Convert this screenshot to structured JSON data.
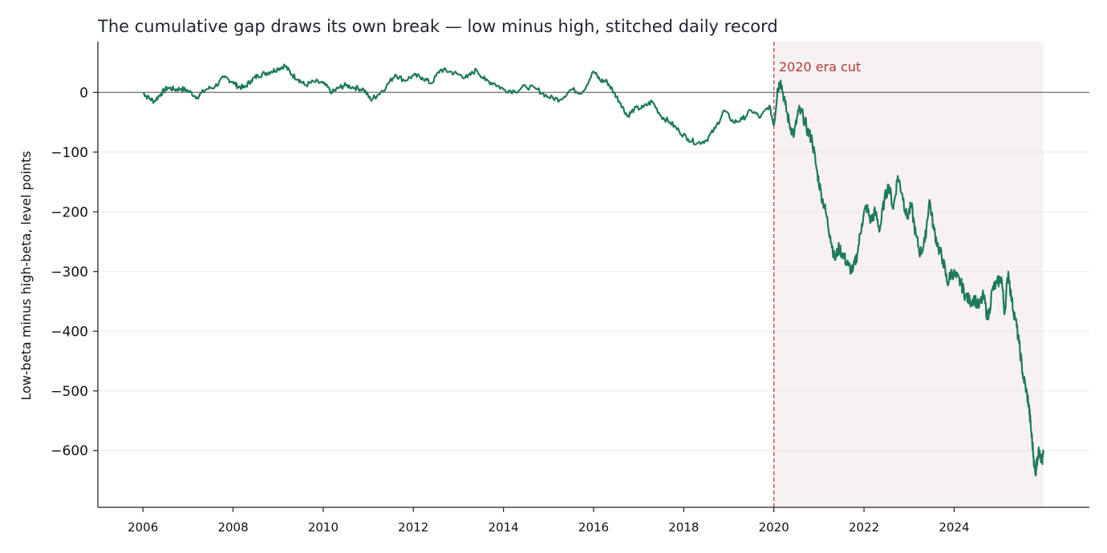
{
  "chart_data": {
    "type": "line",
    "title": "The cumulative gap draws its own break — low minus high, stitched daily record",
    "xlabel": "",
    "ylabel": "Low-beta minus high-beta, level points",
    "xlim": [
      2005.0,
      2027.0
    ],
    "ylim": [
      -695,
      85
    ],
    "x_ticks": [
      2006,
      2008,
      2010,
      2012,
      2014,
      2016,
      2018,
      2020,
      2022,
      2024
    ],
    "x_tick_labels": [
      "2006",
      "2008",
      "2010",
      "2012",
      "2014",
      "2016",
      "2018",
      "2020",
      "2022",
      "2024"
    ],
    "y_ticks": [
      0,
      -100,
      -200,
      -300,
      -400,
      -500,
      -600
    ],
    "y_tick_labels": [
      "0",
      "−100",
      "−200",
      "−300",
      "−400",
      "−500",
      "−600"
    ],
    "grid": "horizontal",
    "zero_line": true,
    "annotation": {
      "x": 2020.0,
      "label": "2020 era cut",
      "shade_to": 2025.98
    },
    "colors": {
      "line": "#1e7a5c",
      "cut": "#c0504d",
      "shade": "#f7f1f1",
      "annot_text": "#b03a3a",
      "zero": "#7a7a7a",
      "grid": "#e8e8e8",
      "axis": "#222222"
    },
    "series": [
      {
        "x": [
          2006.0,
          2006.1,
          2006.25,
          2006.4,
          2006.55,
          2006.7,
          2006.85,
          2007.0,
          2007.2,
          2007.4,
          2007.6,
          2007.8,
          2008.0,
          2008.1,
          2008.25,
          2008.4,
          2008.55,
          2008.7,
          2008.85,
          2009.0,
          2009.15,
          2009.3,
          2009.45,
          2009.6,
          2009.8,
          2010.0,
          2010.2,
          2010.35,
          2010.5,
          2010.7,
          2010.9,
          2011.05,
          2011.2,
          2011.4,
          2011.6,
          2011.8,
          2012.0,
          2012.2,
          2012.4,
          2012.6,
          2012.8,
          2013.0,
          2013.2,
          2013.4,
          2013.6,
          2013.8,
          2014.0,
          2014.25,
          2014.5,
          2014.75,
          2015.0,
          2015.25,
          2015.5,
          2015.75,
          2016.0,
          2016.15,
          2016.3,
          2016.45,
          2016.6,
          2016.75,
          2016.9,
          2017.1,
          2017.3,
          2017.5,
          2017.7,
          2017.9,
          2018.1,
          2018.3,
          2018.5,
          2018.7,
          2018.9,
          2019.1,
          2019.3,
          2019.5,
          2019.7,
          2019.9,
          2020.0,
          2020.08,
          2020.15,
          2020.25,
          2020.35,
          2020.45,
          2020.55,
          2020.65,
          2020.75,
          2020.85,
          2020.95,
          2021.05,
          2021.15,
          2021.25,
          2021.35,
          2021.45,
          2021.55,
          2021.65,
          2021.75,
          2021.85,
          2021.95,
          2022.05,
          2022.15,
          2022.25,
          2022.35,
          2022.45,
          2022.55,
          2022.65,
          2022.75,
          2022.85,
          2022.95,
          2023.05,
          2023.15,
          2023.25,
          2023.35,
          2023.45,
          2023.55,
          2023.65,
          2023.75,
          2023.85,
          2023.95,
          2024.05,
          2024.15,
          2024.25,
          2024.35,
          2024.45,
          2024.55,
          2024.65,
          2024.75,
          2024.85,
          2024.95,
          2025.05,
          2025.12,
          2025.2,
          2025.28,
          2025.36,
          2025.44,
          2025.52,
          2025.6,
          2025.65,
          2025.7,
          2025.75,
          2025.8,
          2025.85,
          2025.9,
          2025.95,
          2025.98
        ],
        "y": [
          0,
          -8,
          -15,
          -2,
          8,
          5,
          6,
          3,
          -8,
          5,
          10,
          25,
          18,
          10,
          8,
          20,
          28,
          32,
          35,
          40,
          45,
          30,
          22,
          12,
          18,
          15,
          0,
          8,
          12,
          8,
          5,
          -12,
          -5,
          10,
          30,
          20,
          28,
          25,
          15,
          38,
          35,
          30,
          25,
          38,
          20,
          15,
          5,
          2,
          10,
          5,
          -8,
          -12,
          5,
          0,
          35,
          20,
          18,
          0,
          -18,
          -40,
          -28,
          -25,
          -15,
          -40,
          -50,
          -65,
          -78,
          -85,
          -80,
          -60,
          -30,
          -50,
          -45,
          -30,
          -42,
          -22,
          -55,
          5,
          20,
          -20,
          -55,
          -70,
          -30,
          -40,
          -65,
          -80,
          -130,
          -170,
          -200,
          -240,
          -280,
          -260,
          -275,
          -290,
          -300,
          -270,
          -220,
          -190,
          -215,
          -200,
          -230,
          -180,
          -155,
          -195,
          -140,
          -170,
          -210,
          -190,
          -240,
          -270,
          -250,
          -180,
          -230,
          -260,
          -280,
          -320,
          -300,
          -310,
          -320,
          -340,
          -350,
          -345,
          -360,
          -340,
          -380,
          -330,
          -320,
          -310,
          -370,
          -300,
          -350,
          -380,
          -420,
          -470,
          -500,
          -520,
          -560,
          -600,
          -640,
          -610,
          -600,
          -620,
          -605
        ]
      }
    ]
  }
}
